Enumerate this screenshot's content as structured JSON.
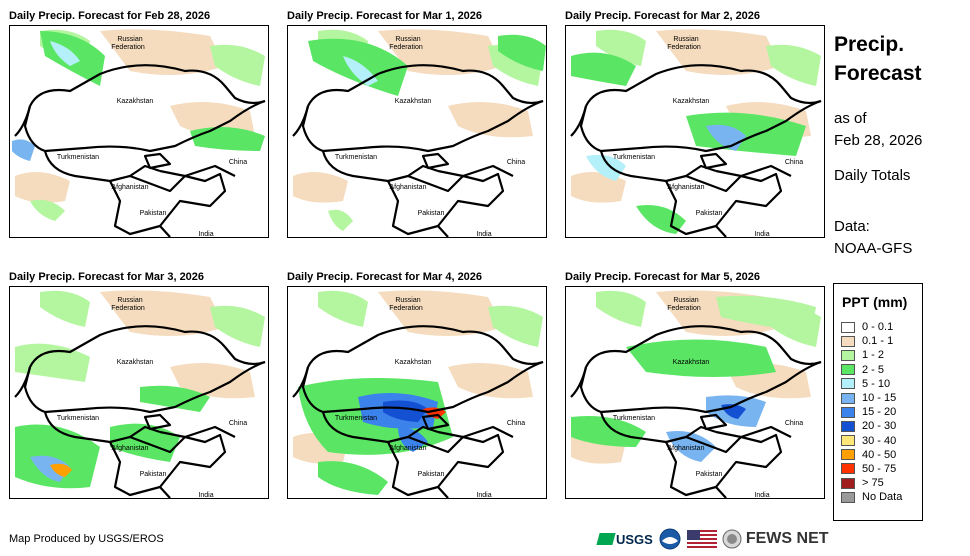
{
  "panels": [
    {
      "title": "Daily Precip. Forecast for Feb 28, 2026"
    },
    {
      "title": "Daily Precip. Forecast for Mar 1, 2026"
    },
    {
      "title": "Daily Precip. Forecast for Mar 2, 2026"
    },
    {
      "title": "Daily Precip. Forecast for Mar 3, 2026"
    },
    {
      "title": "Daily Precip. Forecast for Mar 4, 2026"
    },
    {
      "title": "Daily Precip. Forecast for Mar 5, 2026"
    }
  ],
  "map_labels": {
    "russia_line1": "Russian",
    "russia_line2": "Federation",
    "kazakhstan": "Kazakhstan",
    "turkmenistan": "Turkmenistan",
    "afghanistan": "Afghanistan",
    "pakistan": "Pakistan",
    "china": "China",
    "india": "India"
  },
  "side": {
    "title_line1": "Precip.",
    "title_line2": "Forecast",
    "asof_line1": "as of",
    "asof_line2": "Feb 28, 2026",
    "daily": "Daily Totals",
    "data_line1": "Data:",
    "data_line2": "NOAA-GFS"
  },
  "legend": {
    "title": "PPT (mm)",
    "items": [
      {
        "label": "0 - 0.1",
        "color": "#ffffff"
      },
      {
        "label": "0.1 - 1",
        "color": "#f5dcbe"
      },
      {
        "label": "1 - 2",
        "color": "#b4f5a0"
      },
      {
        "label": "2 - 5",
        "color": "#5ae664"
      },
      {
        "label": "5 - 10",
        "color": "#b4f0fa"
      },
      {
        "label": "10 - 15",
        "color": "#78b4f0"
      },
      {
        "label": "15 - 20",
        "color": "#3c82eb"
      },
      {
        "label": "20 - 30",
        "color": "#1450d2"
      },
      {
        "label": "30 - 40",
        "color": "#ffe678"
      },
      {
        "label": "40 - 50",
        "color": "#ffa000"
      },
      {
        "label": "50 - 75",
        "color": "#ff3200"
      },
      {
        "label": "> 75",
        "color": "#a01e1e"
      },
      {
        "label": "No Data",
        "color": "#999999"
      }
    ]
  },
  "credit": "Map Produced by USGS/EROS",
  "logos": {
    "usgs": "USGS",
    "fews": "FEWS NET"
  }
}
